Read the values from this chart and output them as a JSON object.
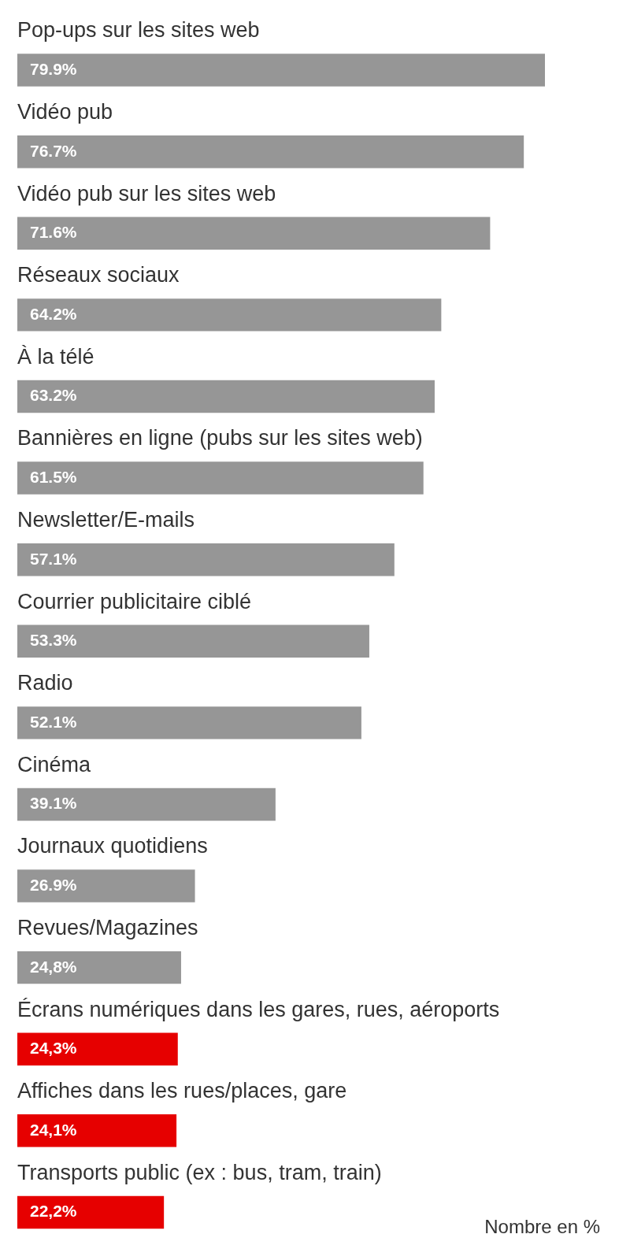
{
  "chart_data": {
    "type": "bar",
    "orientation": "horizontal",
    "categories": [
      "Pop-ups sur les sites web",
      "Vidéo pub",
      "Vidéo pub sur les sites web",
      "Réseaux sociaux",
      "À la télé",
      "Bannières en ligne (pubs sur les sites web)",
      "Newsletter/E-mails",
      "Courrier publicitaire ciblé",
      "Radio",
      "Cinéma",
      "Journaux quotidiens",
      "Revues/Magazines",
      "Écrans numériques dans les gares, rues, aéroports",
      "Affiches dans les rues/places, gare",
      "Transports public (ex : bus, tram, train)"
    ],
    "values": [
      79.9,
      76.7,
      71.6,
      64.2,
      63.2,
      61.5,
      57.1,
      53.3,
      52.1,
      39.1,
      26.9,
      24.8,
      24.3,
      24.1,
      22.2
    ],
    "value_labels": [
      "79.9%",
      "76.7%",
      "71.6%",
      "64.2%",
      "63.2%",
      "61.5%",
      "57.1%",
      "53.3%",
      "52.1%",
      "39.1%",
      "26.9%",
      "24,8%",
      "24,3%",
      "24,1%",
      "22,2%"
    ],
    "colors": [
      "#969696",
      "#969696",
      "#969696",
      "#969696",
      "#969696",
      "#969696",
      "#969696",
      "#969696",
      "#969696",
      "#969696",
      "#969696",
      "#969696",
      "#e60000",
      "#e60000",
      "#e60000"
    ],
    "annotations": [
      "Nombre en %"
    ]
  }
}
